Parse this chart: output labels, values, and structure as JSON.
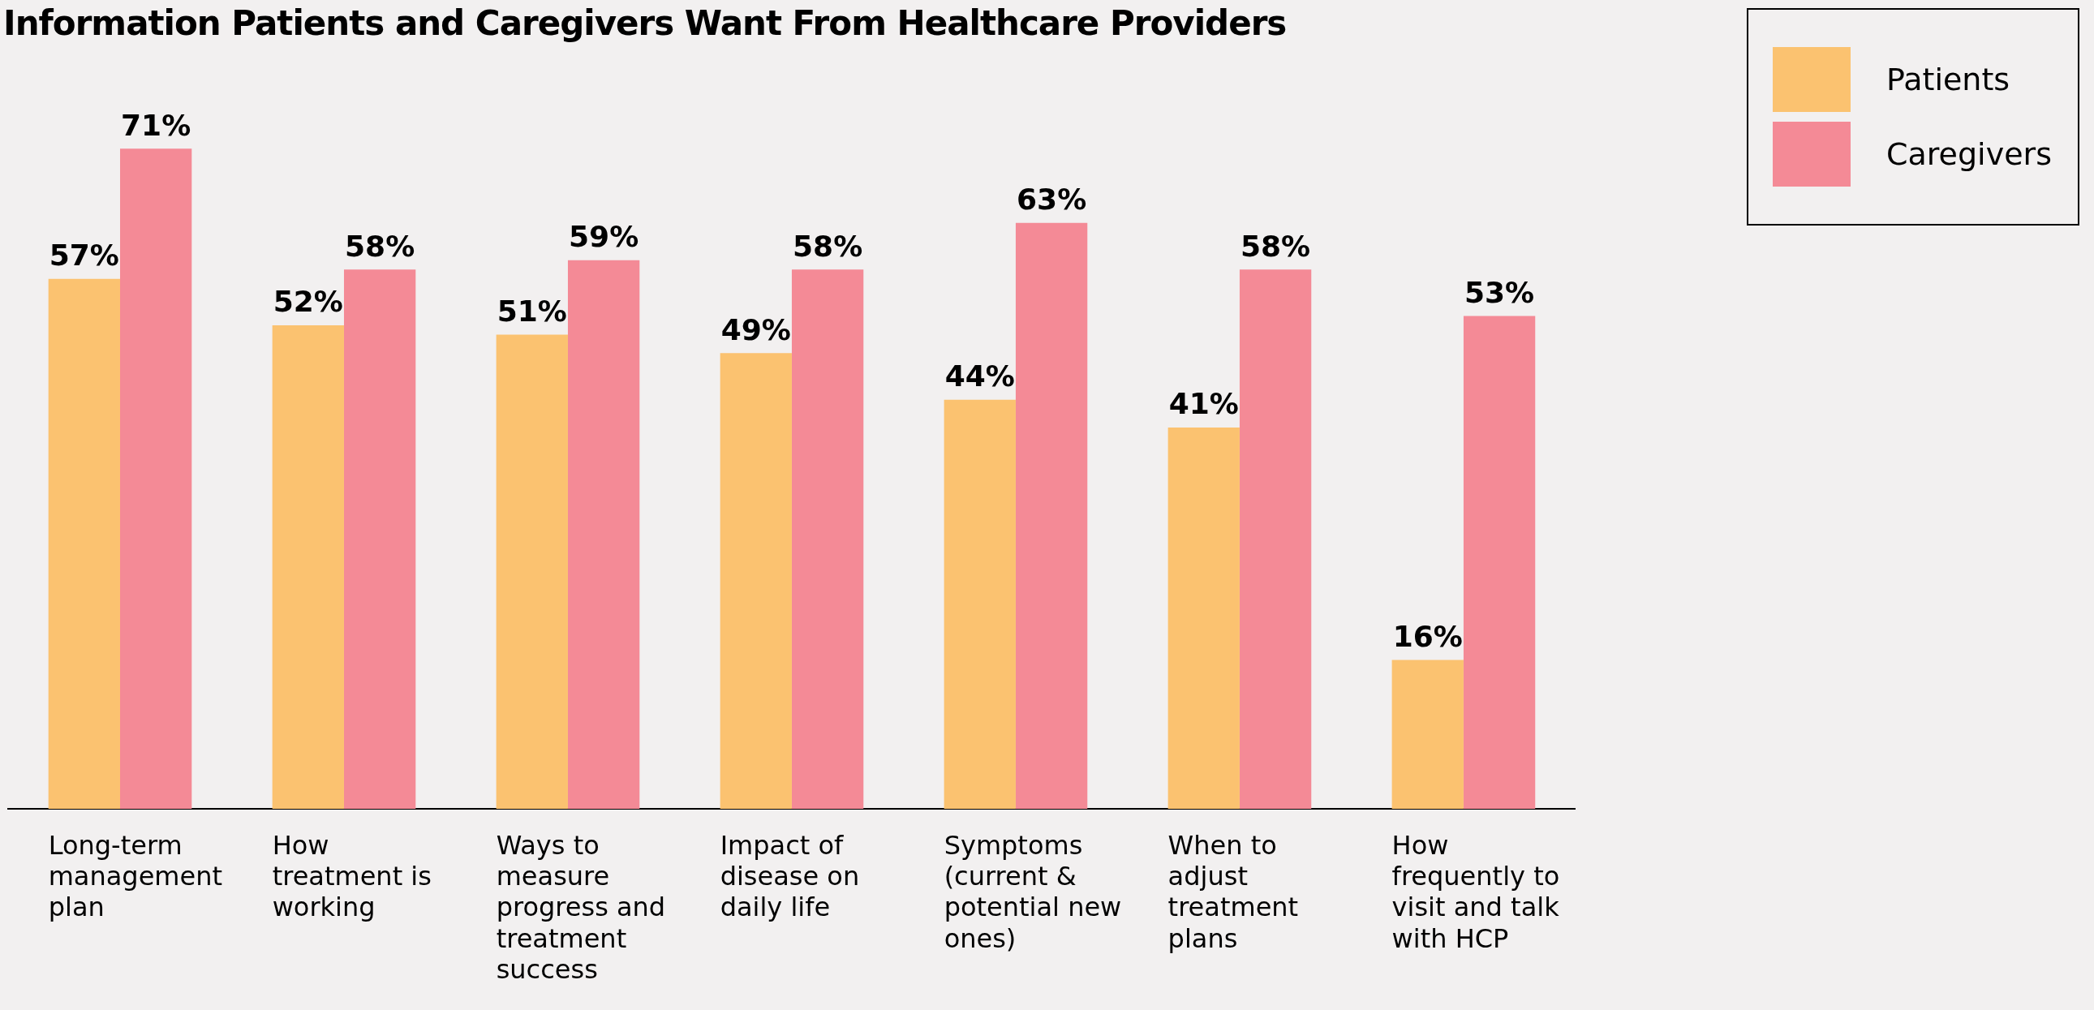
{
  "chart_data": {
    "type": "bar",
    "title": "Information Patients and Caregivers Want From Healthcare Providers",
    "categories": [
      "Long-term management plan",
      "How treatment is working",
      "Ways to measure progress and treatment success",
      "Impact of disease on daily life",
      "Symptoms (current & potential new ones)",
      "When to adjust treatment plans",
      "How frequently to visit and talk with HCP"
    ],
    "series": [
      {
        "name": "Patients",
        "color": "#fbc270",
        "values": [
          57,
          52,
          51,
          49,
          44,
          41,
          16
        ],
        "value_labels": [
          "57%",
          "52%",
          "51%",
          "49%",
          "44%",
          "41%",
          "16%"
        ]
      },
      {
        "name": "Caregivers",
        "color": "#f48a96",
        "values": [
          71,
          58,
          59,
          58,
          63,
          58,
          53
        ],
        "value_labels": [
          "71%",
          "58%",
          "59%",
          "58%",
          "63%",
          "58%",
          "53%"
        ]
      }
    ],
    "legend": "top right",
    "grid": false,
    "tick_labels": "x"
  }
}
